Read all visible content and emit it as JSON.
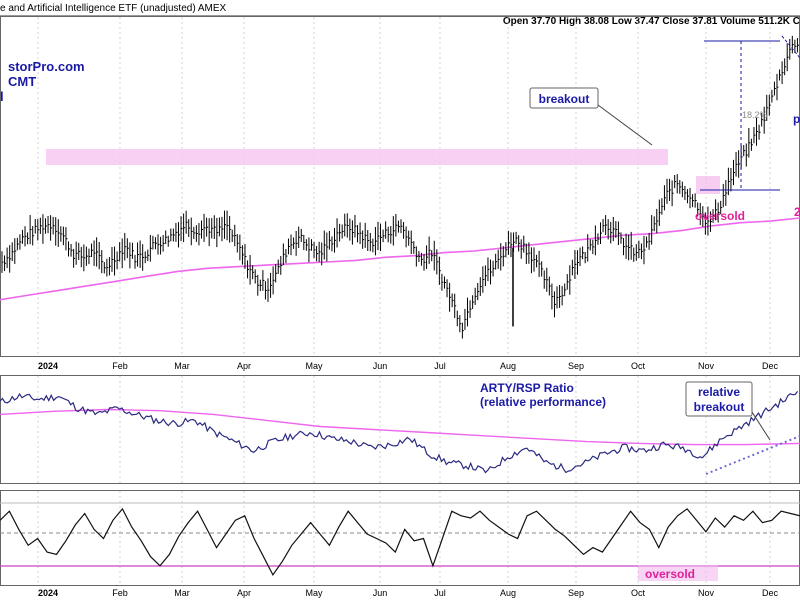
{
  "header": {
    "title": "e and Artificial Intelligence ETF (unadjusted)  AMEX",
    "quote": "Open 37.70  High 38.08  Low 37.47  Close 37.81  Volume 511.2K  C"
  },
  "watermark": {
    "line1": "storPro.com",
    "line2": "CMT",
    "line3": "l"
  },
  "annotations": {
    "breakout": "breakout",
    "oversold": "oversold",
    "p": "p",
    "pct": "2",
    "move_pct": "18.2%",
    "ratio_title_1": "ARTY/RSP Ratio",
    "ratio_title_2": "(relative performance)",
    "relative_1": "relative",
    "relative_2": "breakout",
    "oversold_osc": "oversold"
  },
  "colors": {
    "price": "#000000",
    "ma": "#ee66ee",
    "zone": "#f6c6f0",
    "annotation_blue": "#1a1aa6",
    "annotation_magenta": "#e0209a",
    "ratio_line": "#2a2a80",
    "grid": "#c8c8c8"
  },
  "chart_data": [
    {
      "type": "line",
      "name": "price",
      "x_ticks": [
        "2024",
        "Feb",
        "Mar",
        "Apr",
        "May",
        "Jun",
        "Jul",
        "Aug",
        "Sep",
        "Oct",
        "Nov",
        "Dec"
      ],
      "series": [
        {
          "values": [
            23.6,
            24.2,
            25.1,
            25.5,
            25.9,
            26.0,
            25.2,
            24.1,
            23.9,
            24.3,
            23.2,
            23.8,
            24.6,
            23.9,
            24.1,
            24.8,
            25.0,
            25.5,
            26.0,
            25.6,
            25.8,
            25.5,
            25.9,
            24.7,
            23.4,
            22.3,
            22.0,
            23.1,
            24.6,
            25.2,
            24.6,
            24.1,
            24.8,
            25.6,
            25.8,
            25.4,
            24.8,
            25.2,
            25.6,
            25.9,
            24.8,
            23.7,
            24.2,
            22.6,
            21.1,
            19.5,
            21.3,
            22.6,
            23.2,
            24.2,
            25.1,
            24.6,
            23.8,
            22.6,
            21.1,
            21.9,
            23.6,
            24.1,
            25.1,
            26.1,
            25.4,
            24.6,
            24.1,
            24.6,
            26.3,
            27.9,
            28.6,
            28.0,
            27.2,
            26.0,
            26.9,
            28.6,
            29.9,
            30.9,
            32.1,
            33.6,
            35.4,
            37.1,
            37.8
          ]
        },
        {
          "name": "moving average",
          "values": [
            21.2,
            21.5,
            21.8,
            22.1,
            22.4,
            22.7,
            23.0,
            23.2,
            23.3,
            23.4,
            23.5,
            23.6,
            23.7,
            23.9,
            24.0,
            24.2,
            24.3,
            24.5,
            24.7,
            24.9,
            25.1,
            25.3,
            25.4,
            25.6,
            25.9,
            26.1,
            26.2,
            26.4
          ]
        }
      ]
    },
    {
      "type": "line",
      "name": "ARTY/RSP Ratio",
      "series": [
        {
          "values": [
            0.62,
            0.63,
            0.625,
            0.63,
            0.61,
            0.6,
            0.61,
            0.6,
            0.59,
            0.585,
            0.59,
            0.57,
            0.555,
            0.54,
            0.555,
            0.565,
            0.57,
            0.56,
            0.555,
            0.545,
            0.55,
            0.56,
            0.535,
            0.52,
            0.515,
            0.505,
            0.53,
            0.545,
            0.52,
            0.51,
            0.52,
            0.535,
            0.545,
            0.54,
            0.55,
            0.545,
            0.53,
            0.56,
            0.58,
            0.6,
            0.62,
            0.64
          ]
        },
        {
          "name": "moving average",
          "values": [
            0.6,
            0.605,
            0.608,
            0.606,
            0.6,
            0.59,
            0.58,
            0.575,
            0.57,
            0.565,
            0.56,
            0.555,
            0.552,
            0.55,
            0.55,
            0.552
          ]
        }
      ]
    },
    {
      "type": "line",
      "name": "momentum oscillator",
      "series": [
        {
          "values": [
            58,
            62,
            54,
            47,
            50,
            44,
            43,
            49,
            56,
            61,
            54,
            50,
            58,
            63,
            55,
            49,
            42,
            38,
            43,
            51,
            57,
            62,
            54,
            46,
            52,
            58,
            60,
            50,
            42,
            34,
            40,
            47,
            52,
            57,
            52,
            47,
            55,
            62,
            57,
            52,
            50,
            48,
            44,
            54,
            49,
            50,
            38,
            50,
            62,
            60,
            59,
            62,
            58,
            55,
            52,
            50,
            60,
            62,
            58,
            54,
            51,
            47,
            43,
            46,
            44,
            50,
            56,
            62,
            57,
            54,
            46,
            55,
            60,
            63,
            58,
            53,
            59,
            55,
            60,
            58,
            62,
            57,
            58,
            62,
            61,
            60
          ]
        }
      ]
    }
  ]
}
